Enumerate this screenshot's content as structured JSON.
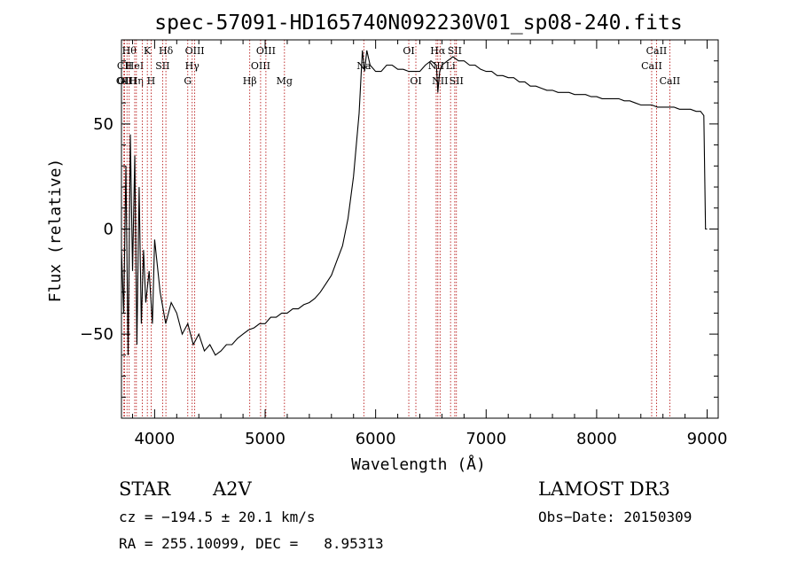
{
  "chart_data": {
    "type": "line",
    "title": "spec-57091-HD165740N092230V01_sp08-240.fits",
    "xlabel": "Wavelength (Å)",
    "ylabel": "Flux (relative)",
    "xlim": [
      3700,
      9100
    ],
    "ylim": [
      -90,
      90
    ],
    "x_ticks": [
      4000,
      5000,
      6000,
      7000,
      8000,
      9000
    ],
    "y_ticks": [
      -50,
      0,
      50
    ],
    "grid": false,
    "series": [
      {
        "x": [
          3700,
          3720,
          3740,
          3760,
          3780,
          3800,
          3820,
          3840,
          3860,
          3880,
          3900,
          3920,
          3950,
          3980,
          4000,
          4050,
          4100,
          4150,
          4200,
          4250,
          4300,
          4350,
          4400,
          4450,
          4500,
          4550,
          4600,
          4650,
          4700,
          4750,
          4800,
          4850,
          4900,
          4950,
          5000,
          5050,
          5100,
          5150,
          5200,
          5250,
          5300,
          5350,
          5400,
          5450,
          5500,
          5550,
          5600,
          5650,
          5700,
          5750,
          5800,
          5850,
          5880,
          5900,
          5920,
          5950,
          6000,
          6050,
          6100,
          6150,
          6200,
          6250,
          6300,
          6350,
          6400,
          6450,
          6500,
          6550,
          6563,
          6580,
          6600,
          6650,
          6700,
          6750,
          6800,
          6850,
          6900,
          6950,
          7000,
          7050,
          7100,
          7150,
          7200,
          7250,
          7300,
          7350,
          7400,
          7450,
          7500,
          7550,
          7600,
          7650,
          7700,
          7750,
          7800,
          7850,
          7900,
          7950,
          8000,
          8050,
          8100,
          8150,
          8200,
          8250,
          8300,
          8350,
          8400,
          8450,
          8500,
          8550,
          8600,
          8650,
          8700,
          8750,
          8800,
          8850,
          8900,
          8940,
          8970,
          8985,
          9000
        ],
        "y": [
          -10,
          -40,
          30,
          -60,
          45,
          -20,
          35,
          -55,
          20,
          -45,
          -10,
          -35,
          -20,
          -45,
          -5,
          -30,
          -45,
          -35,
          -40,
          -50,
          -45,
          -55,
          -50,
          -58,
          -55,
          -60,
          -58,
          -55,
          -55,
          -52,
          -50,
          -48,
          -47,
          -45,
          -45,
          -42,
          -42,
          -40,
          -40,
          -38,
          -38,
          -36,
          -35,
          -33,
          -30,
          -26,
          -22,
          -15,
          -8,
          5,
          25,
          55,
          85,
          75,
          85,
          78,
          75,
          75,
          78,
          78,
          76,
          76,
          75,
          75,
          75,
          78,
          80,
          78,
          65,
          75,
          78,
          80,
          82,
          80,
          80,
          78,
          78,
          76,
          75,
          75,
          73,
          73,
          72,
          72,
          70,
          70,
          68,
          68,
          67,
          66,
          66,
          65,
          65,
          65,
          64,
          64,
          64,
          63,
          63,
          62,
          62,
          62,
          62,
          61,
          61,
          60,
          59,
          59,
          59,
          58,
          58,
          58,
          58,
          57,
          57,
          57,
          56,
          56,
          54,
          0,
          0
        ]
      }
    ],
    "line_annotations": [
      {
        "wavelength": 3722,
        "label": "OII",
        "row": 2
      },
      {
        "wavelength": 3728,
        "label": "CII",
        "row": 1
      },
      {
        "wavelength": 3750,
        "label": "OIII",
        "row": 2
      },
      {
        "wavelength": 3770,
        "label": "Hθ",
        "row": 0
      },
      {
        "wavelength": 3820,
        "label": "HeI",
        "row": 1
      },
      {
        "wavelength": 3835,
        "label": "Hη",
        "row": 2
      },
      {
        "wavelength": 3889,
        "label": "",
        "row": 0
      },
      {
        "wavelength": 3934,
        "label": "K",
        "row": 0
      },
      {
        "wavelength": 3968,
        "label": "H",
        "row": 2
      },
      {
        "wavelength": 4072,
        "label": "SII",
        "row": 1
      },
      {
        "wavelength": 4102,
        "label": "Hδ",
        "row": 0
      },
      {
        "wavelength": 4300,
        "label": "G",
        "row": 2
      },
      {
        "wavelength": 4340,
        "label": "Hγ",
        "row": 1
      },
      {
        "wavelength": 4363,
        "label": "OIII",
        "row": 0
      },
      {
        "wavelength": 4861,
        "label": "Hβ",
        "row": 2
      },
      {
        "wavelength": 4959,
        "label": "OIII",
        "row": 1
      },
      {
        "wavelength": 5007,
        "label": "OIII",
        "row": 0
      },
      {
        "wavelength": 5175,
        "label": "Mg",
        "row": 2
      },
      {
        "wavelength": 5893,
        "label": "Na",
        "row": 1
      },
      {
        "wavelength": 6300,
        "label": "OI",
        "row": 0
      },
      {
        "wavelength": 6364,
        "label": "OI",
        "row": 2
      },
      {
        "wavelength": 6548,
        "label": "NII",
        "row": 1
      },
      {
        "wavelength": 6563,
        "label": "Hα",
        "row": 0
      },
      {
        "wavelength": 6583,
        "label": "NII",
        "row": 2
      },
      {
        "wavelength": 6678,
        "label": "Li",
        "row": 1
      },
      {
        "wavelength": 6716,
        "label": "SII",
        "row": 0
      },
      {
        "wavelength": 6731,
        "label": "SII",
        "row": 2
      },
      {
        "wavelength": 8498,
        "label": "CaII",
        "row": 1
      },
      {
        "wavelength": 8542,
        "label": "CaII",
        "row": 0
      },
      {
        "wavelength": 8662,
        "label": "CaII",
        "row": 2
      }
    ]
  },
  "info": {
    "obj_class": "STAR",
    "subclass": "A2V",
    "survey": "LAMOST DR3",
    "cz": "cz = −194.5 ± 20.1 km/s",
    "obs_date": "Obs−Date: 20150309",
    "radec": "RA = 255.10099, DEC =   8.95313"
  }
}
